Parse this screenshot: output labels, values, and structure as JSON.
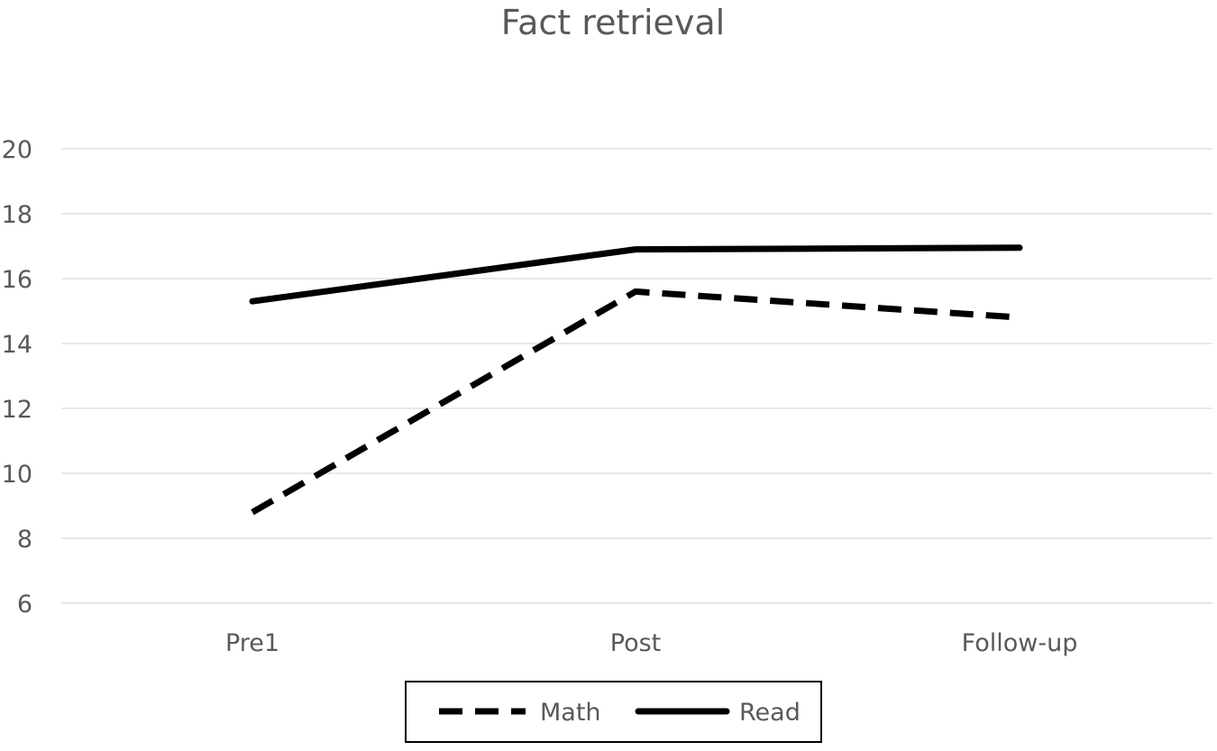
{
  "chart_data": {
    "type": "line",
    "title": "Fact retrieval",
    "xlabel": "",
    "ylabel": "",
    "categories": [
      "Pre1",
      "Post",
      "Follow-up"
    ],
    "ylim": [
      6,
      20
    ],
    "yticks": [
      6,
      8,
      10,
      12,
      14,
      16,
      18,
      20
    ],
    "grid": true,
    "legend_position": "bottom",
    "series": [
      {
        "name": "Math",
        "values": [
          8.8,
          15.6,
          14.8
        ],
        "style": "dashed",
        "color": "#000000"
      },
      {
        "name": "Read",
        "values": [
          15.3,
          16.9,
          16.95
        ],
        "style": "solid",
        "color": "#000000"
      }
    ]
  }
}
